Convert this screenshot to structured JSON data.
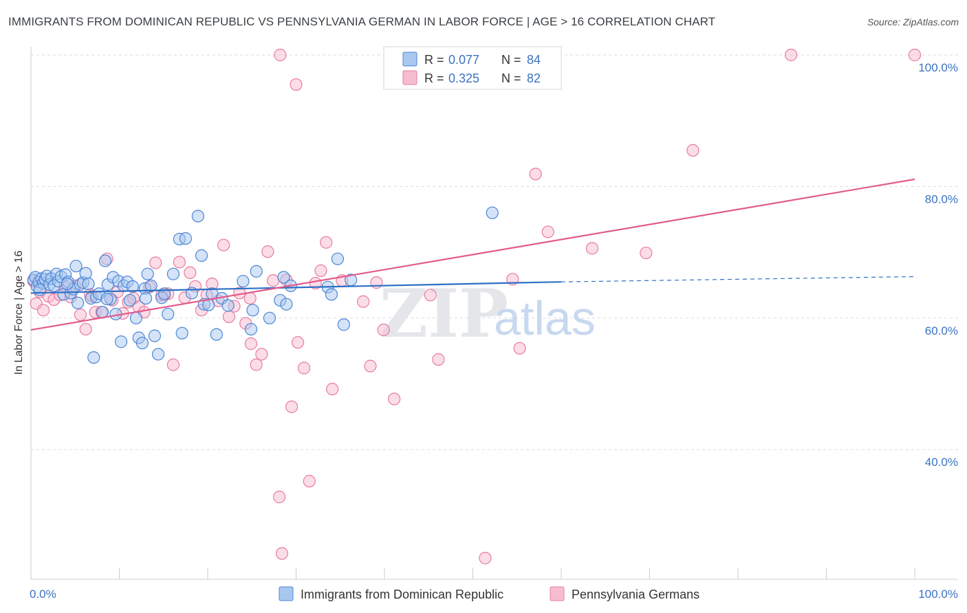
{
  "title": "IMMIGRANTS FROM DOMINICAN REPUBLIC VS PENNSYLVANIA GERMAN IN LABOR FORCE | AGE > 16 CORRELATION CHART",
  "source": "Source: ZipAtlas.com",
  "legend": {
    "series1": {
      "r_label": "R =",
      "r_value": "0.077",
      "n_label": "N =",
      "n_value": "84"
    },
    "series2": {
      "r_label": "R =",
      "r_value": "0.325",
      "n_label": "N =",
      "n_value": "82"
    }
  },
  "watermark": {
    "zip": "ZIP",
    "atlas": "atlas"
  },
  "colors": {
    "blue_fill": "#a9c8f0",
    "blue_stroke": "#4a86d6",
    "blue_line": "#2c6fc4",
    "pink_fill": "#f7bcd0",
    "pink_stroke": "#e87aa0",
    "pink_line": "#e25a8c",
    "axis_text": "#3b72c4",
    "grid": "#d8dbe0"
  },
  "chart_data": {
    "type": "scatter",
    "title": "IMMIGRANTS FROM DOMINICAN REPUBLIC VS PENNSYLVANIA GERMAN IN LABOR FORCE | AGE > 16 CORRELATION CHART",
    "xlabel": "",
    "ylabel": "In Labor Force | Age > 16",
    "xlim": [
      0,
      100
    ],
    "ylim": [
      20,
      102
    ],
    "x_tick_labels": [
      "0.0%",
      "100.0%"
    ],
    "y_ticks": [
      40,
      60,
      80,
      100
    ],
    "y_tick_labels": [
      "40.0%",
      "60.0%",
      "80.0%",
      "100.0%"
    ],
    "grid": true,
    "legend_position": "top-center",
    "series": [
      {
        "name": "Immigrants from Dominican Republic",
        "color": "#a9c8f0",
        "trend": {
          "x": [
            0,
            60
          ],
          "y": [
            63.8,
            65.5
          ],
          "dashed_extension": {
            "x": [
              60,
              100
            ],
            "y": [
              65.5,
              66.3
            ]
          }
        },
        "points": [
          [
            0.3,
            65.8
          ],
          [
            0.5,
            66.2
          ],
          [
            0.7,
            64.8
          ],
          [
            0.9,
            65.5
          ],
          [
            1.2,
            66.0
          ],
          [
            1.4,
            65.3
          ],
          [
            1.6,
            65.9
          ],
          [
            1.8,
            66.4
          ],
          [
            2.1,
            65.1
          ],
          [
            2.3,
            66.0
          ],
          [
            2.6,
            64.9
          ],
          [
            2.9,
            66.7
          ],
          [
            3.1,
            65.6
          ],
          [
            3.4,
            66.3
          ],
          [
            3.7,
            63.6
          ],
          [
            3.9,
            66.6
          ],
          [
            4.2,
            65.5
          ],
          [
            4.5,
            63.8
          ],
          [
            4.8,
            64.4
          ],
          [
            5.1,
            67.9
          ],
          [
            5.3,
            62.3
          ],
          [
            5.6,
            65.1
          ],
          [
            5.9,
            65.4
          ],
          [
            6.2,
            66.8
          ],
          [
            6.5,
            65.2
          ],
          [
            6.8,
            63.0
          ],
          [
            7.1,
            54.0
          ],
          [
            7.4,
            63.2
          ],
          [
            7.7,
            63.7
          ],
          [
            8.1,
            60.9
          ],
          [
            8.4,
            68.7
          ],
          [
            8.7,
            65.1
          ],
          [
            9.0,
            62.9
          ],
          [
            9.3,
            66.2
          ],
          [
            9.6,
            60.6
          ],
          [
            9.9,
            65.6
          ],
          [
            10.2,
            56.4
          ],
          [
            10.5,
            64.9
          ],
          [
            10.9,
            65.5
          ],
          [
            11.2,
            62.7
          ],
          [
            11.5,
            64.8
          ],
          [
            11.9,
            60.0
          ],
          [
            12.2,
            57.0
          ],
          [
            12.6,
            56.2
          ],
          [
            12.9,
            64.5
          ],
          [
            13.2,
            66.7
          ],
          [
            13.6,
            64.9
          ],
          [
            14.0,
            57.3
          ],
          [
            14.4,
            54.5
          ],
          [
            14.8,
            63.1
          ],
          [
            15.1,
            63.7
          ],
          [
            15.5,
            60.6
          ],
          [
            16.1,
            66.7
          ],
          [
            16.8,
            72.0
          ],
          [
            17.1,
            57.7
          ],
          [
            17.5,
            72.1
          ],
          [
            18.2,
            63.8
          ],
          [
            18.9,
            75.5
          ],
          [
            19.3,
            69.5
          ],
          [
            19.6,
            62.1
          ],
          [
            20.1,
            62.0
          ],
          [
            20.5,
            63.7
          ],
          [
            21.0,
            57.5
          ],
          [
            21.6,
            63.0
          ],
          [
            22.3,
            61.9
          ],
          [
            24.0,
            65.6
          ],
          [
            24.9,
            58.3
          ],
          [
            25.1,
            61.2
          ],
          [
            25.5,
            67.1
          ],
          [
            27.0,
            60.0
          ],
          [
            28.2,
            62.7
          ],
          [
            28.6,
            66.2
          ],
          [
            28.9,
            62.1
          ],
          [
            29.4,
            64.9
          ],
          [
            33.6,
            64.7
          ],
          [
            34.0,
            63.6
          ],
          [
            34.7,
            69.0
          ],
          [
            36.2,
            65.8
          ],
          [
            35.4,
            59.0
          ],
          [
            52.2,
            76.0
          ],
          [
            13.0,
            63.0
          ],
          [
            8.6,
            62.9
          ],
          [
            4.1,
            65.2
          ],
          [
            1.0,
            64.3
          ]
        ]
      },
      {
        "name": "Pennsylvania Germans",
        "color": "#f7bcd0",
        "trend": {
          "x": [
            0,
            100
          ],
          "y": [
            58.2,
            81.1
          ]
        },
        "points": [
          [
            0.3,
            65.6
          ],
          [
            0.6,
            62.2
          ],
          [
            1.0,
            64.0
          ],
          [
            1.4,
            61.2
          ],
          [
            2.0,
            63.3
          ],
          [
            2.6,
            62.8
          ],
          [
            3.3,
            63.5
          ],
          [
            4.0,
            64.7
          ],
          [
            4.5,
            63.2
          ],
          [
            5.0,
            64.9
          ],
          [
            5.6,
            60.5
          ],
          [
            6.2,
            58.3
          ],
          [
            6.7,
            63.6
          ],
          [
            7.3,
            60.9
          ],
          [
            8.0,
            60.9
          ],
          [
            8.6,
            69.0
          ],
          [
            9.2,
            62.7
          ],
          [
            9.8,
            64.0
          ],
          [
            10.4,
            60.7
          ],
          [
            11.0,
            62.4
          ],
          [
            11.6,
            63.0
          ],
          [
            12.2,
            61.7
          ],
          [
            12.8,
            60.9
          ],
          [
            13.4,
            64.7
          ],
          [
            14.1,
            68.4
          ],
          [
            14.8,
            63.5
          ],
          [
            15.5,
            63.7
          ],
          [
            16.1,
            52.9
          ],
          [
            16.8,
            68.5
          ],
          [
            17.4,
            63.1
          ],
          [
            18.0,
            66.9
          ],
          [
            18.6,
            64.8
          ],
          [
            19.3,
            61.2
          ],
          [
            19.9,
            63.5
          ],
          [
            20.5,
            65.2
          ],
          [
            21.2,
            62.6
          ],
          [
            21.8,
            71.1
          ],
          [
            22.4,
            60.2
          ],
          [
            23.0,
            61.8
          ],
          [
            23.6,
            63.8
          ],
          [
            24.3,
            59.2
          ],
          [
            24.9,
            56.1
          ],
          [
            25.5,
            52.9
          ],
          [
            26.1,
            54.5
          ],
          [
            26.8,
            70.1
          ],
          [
            27.4,
            65.7
          ],
          [
            28.1,
            32.8
          ],
          [
            28.4,
            24.2
          ],
          [
            28.9,
            65.8
          ],
          [
            29.5,
            46.5
          ],
          [
            30.2,
            56.3
          ],
          [
            30.9,
            52.4
          ],
          [
            31.5,
            35.2
          ],
          [
            32.2,
            65.3
          ],
          [
            32.8,
            67.2
          ],
          [
            33.4,
            71.5
          ],
          [
            34.1,
            49.2
          ],
          [
            35.2,
            65.7
          ],
          [
            38.4,
            52.7
          ],
          [
            39.1,
            65.4
          ],
          [
            39.9,
            58.2
          ],
          [
            41.1,
            47.7
          ],
          [
            46.1,
            53.7
          ],
          [
            46.8,
            100.0
          ],
          [
            50.2,
            95.7
          ],
          [
            51.4,
            23.5
          ],
          [
            54.5,
            65.9
          ],
          [
            55.3,
            55.4
          ],
          [
            57.1,
            81.9
          ],
          [
            58.5,
            73.1
          ],
          [
            63.5,
            70.6
          ],
          [
            69.6,
            69.9
          ],
          [
            74.9,
            85.5
          ],
          [
            86.0,
            100.0
          ],
          [
            100.0,
            100.0
          ],
          [
            28.2,
            100.0
          ],
          [
            30.0,
            95.5
          ],
          [
            24.8,
            63.0
          ],
          [
            15.1,
            63.5
          ],
          [
            6.9,
            63.3
          ],
          [
            37.6,
            62.5
          ],
          [
            45.2,
            63.5
          ]
        ]
      }
    ],
    "legend_entries": [
      "Immigrants from Dominican Republic",
      "Pennsylvania Germans"
    ]
  }
}
